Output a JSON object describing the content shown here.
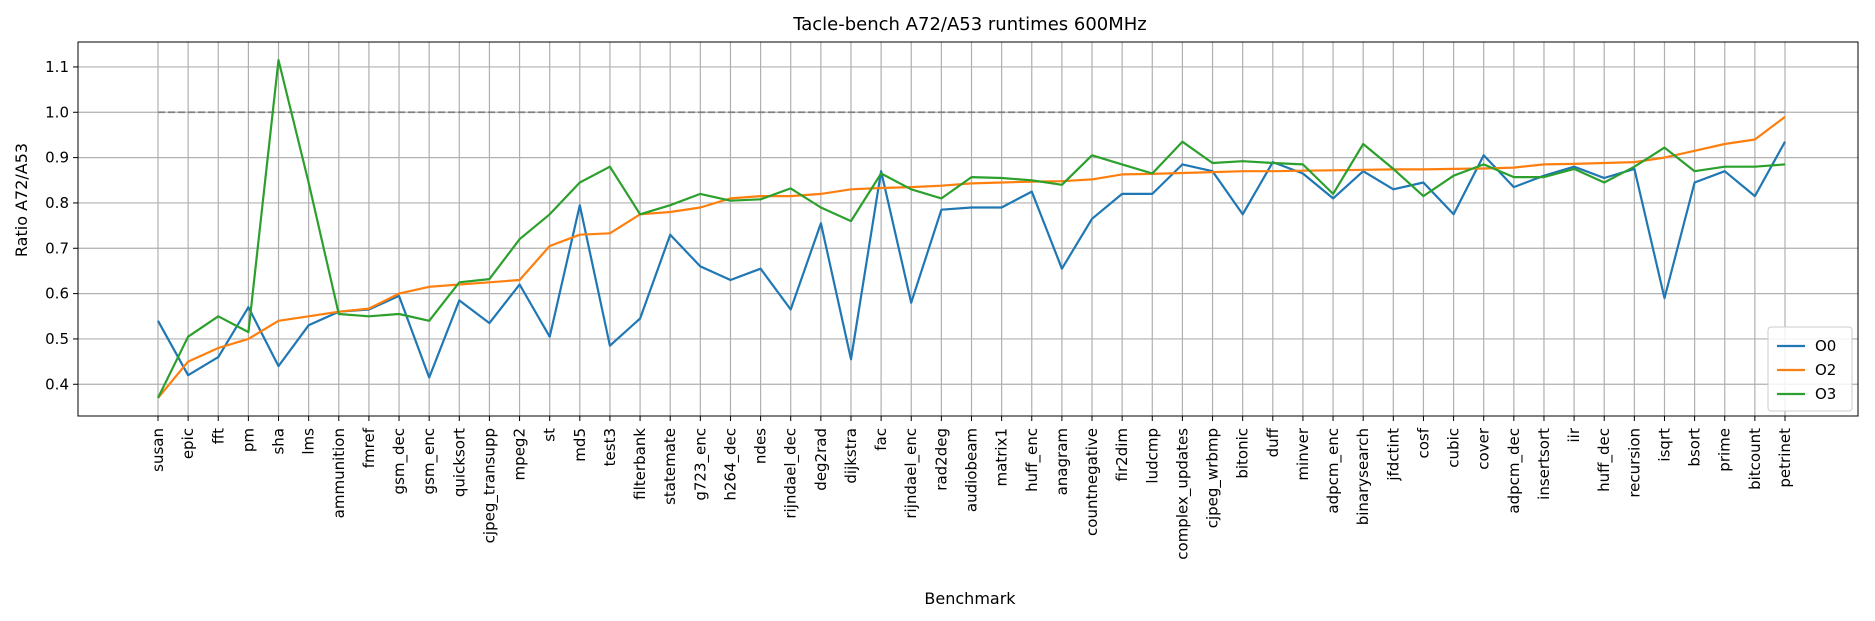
{
  "chart_data": {
    "type": "line",
    "title": "Tacle-bench A72/A53 runtimes 600MHz",
    "xlabel": "Benchmark",
    "ylabel": "Ratio A72/A53",
    "ylim": [
      0.33,
      1.155
    ],
    "yticks": [
      "0.4",
      "0.5",
      "0.6",
      "0.7",
      "0.8",
      "0.9",
      "1.0",
      "1.1"
    ],
    "grid": true,
    "legend_position": "lower right",
    "reference_line": {
      "y": 1.0,
      "style": "dashed",
      "color": "#808080"
    },
    "categories": [
      "susan",
      "epic",
      "fft",
      "pm",
      "sha",
      "lms",
      "ammunition",
      "fmref",
      "gsm_dec",
      "gsm_enc",
      "quicksort",
      "cjpeg_transupp",
      "mpeg2",
      "st",
      "md5",
      "test3",
      "filterbank",
      "statemate",
      "g723_enc",
      "h264_dec",
      "ndes",
      "rijndael_dec",
      "deg2rad",
      "dijkstra",
      "fac",
      "rijndael_enc",
      "rad2deg",
      "audiobeam",
      "matrix1",
      "huff_enc",
      "anagram",
      "countnegative",
      "fir2dim",
      "ludcmp",
      "complex_updates",
      "cjpeg_wrbmp",
      "bitonic",
      "duff",
      "minver",
      "adpcm_enc",
      "binarysearch",
      "jfdctint",
      "cosf",
      "cubic",
      "cover",
      "adpcm_dec",
      "insertsort",
      "iir",
      "huff_dec",
      "recursion",
      "isqrt",
      "bsort",
      "prime",
      "bitcount",
      "petrinet"
    ],
    "series": [
      {
        "name": "O0",
        "color": "#1f77b4",
        "values": [
          0.54,
          0.42,
          0.46,
          0.57,
          0.44,
          0.53,
          0.56,
          0.565,
          0.595,
          0.415,
          0.585,
          0.535,
          0.62,
          0.505,
          0.795,
          0.485,
          0.545,
          0.73,
          0.66,
          0.63,
          0.655,
          0.565,
          0.755,
          0.455,
          0.87,
          0.58,
          0.785,
          0.79,
          0.79,
          0.825,
          0.655,
          0.765,
          0.82,
          0.82,
          0.885,
          0.87,
          0.775,
          0.89,
          0.865,
          0.81,
          0.87,
          0.83,
          0.845,
          0.775,
          0.905,
          0.835,
          0.86,
          0.88,
          0.855,
          0.875,
          0.59,
          0.845,
          0.87,
          0.815,
          0.935
        ]
      },
      {
        "name": "O2",
        "color": "#ff7f0e",
        "values": [
          0.37,
          0.45,
          0.48,
          0.5,
          0.54,
          0.55,
          0.56,
          0.567,
          0.6,
          0.615,
          0.62,
          0.625,
          0.63,
          0.705,
          0.73,
          0.733,
          0.775,
          0.78,
          0.79,
          0.81,
          0.815,
          0.815,
          0.82,
          0.83,
          0.833,
          0.835,
          0.838,
          0.843,
          0.845,
          0.847,
          0.848,
          0.852,
          0.863,
          0.864,
          0.866,
          0.868,
          0.87,
          0.87,
          0.871,
          0.872,
          0.873,
          0.874,
          0.874,
          0.875,
          0.876,
          0.878,
          0.885,
          0.886,
          0.888,
          0.89,
          0.9,
          0.915,
          0.93,
          0.94,
          0.99
        ]
      },
      {
        "name": "O3",
        "color": "#2ca02c",
        "values": [
          0.37,
          0.505,
          0.55,
          0.515,
          1.115,
          0.845,
          0.555,
          0.55,
          0.555,
          0.54,
          0.625,
          0.632,
          0.72,
          0.775,
          0.845,
          0.88,
          0.775,
          0.795,
          0.82,
          0.805,
          0.808,
          0.832,
          0.79,
          0.76,
          0.865,
          0.83,
          0.81,
          0.857,
          0.855,
          0.85,
          0.84,
          0.905,
          0.885,
          0.865,
          0.935,
          0.888,
          0.892,
          0.888,
          0.885,
          0.82,
          0.93,
          0.875,
          0.815,
          0.86,
          0.885,
          0.857,
          0.857,
          0.875,
          0.845,
          0.88,
          0.922,
          0.87,
          0.88,
          0.88,
          0.885
        ]
      }
    ]
  }
}
